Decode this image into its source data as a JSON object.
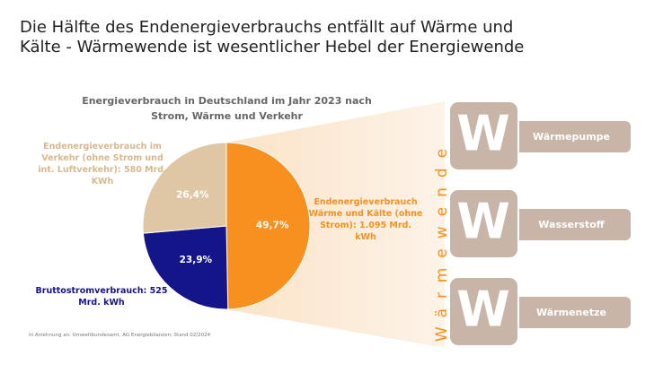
{
  "header": {
    "title": "Die Hälfte des Endenergieverbrauchs entfällt auf Wärme und Kälte - Wärmewende ist wesentlicher Hebel der Energiewende"
  },
  "chart_data": {
    "type": "pie",
    "title": "Energieverbrauch in Deutschland im Jahr 2023 nach Strom, Wärme und Verkehr",
    "categories": [
      "Endenergieverbrauch Wärme und Kälte (ohne Strom): 1.095 Mrd. kWh",
      "Bruttostromverbrauch: 525 Mrd. kWh",
      "Endenergieverbrauch im Verkehr (ohne Strom und int. Luftverkehr): 580 Mrd. KWh"
    ],
    "values": [
      49.7,
      23.9,
      26.4
    ],
    "value_labels": [
      "49,7%",
      "23,9%",
      "26,4%"
    ],
    "colors": [
      "#f7901e",
      "#15158a",
      "#dfc6a4"
    ]
  },
  "sidebar": "Wärmewende",
  "cards": [
    {
      "letter": "W",
      "label": "Wärmepumpe"
    },
    {
      "letter": "W",
      "label": "Wasserstoff"
    },
    {
      "letter": "W",
      "label": "Wärmenetze"
    }
  ],
  "source": "In Anlehnung an: Umweltbundesamt, AG Energiebilanzen; Stand 02/2024"
}
